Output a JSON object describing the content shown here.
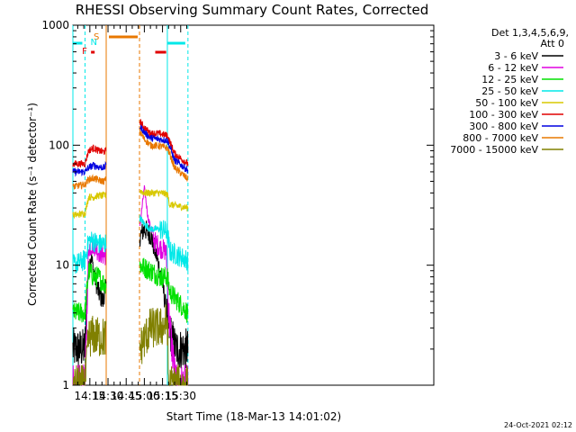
{
  "chart_data": {
    "type": "line",
    "title": "RHESSI Observing Summary Count Rates, Corrected",
    "xlabel": "Start Time (18-Mar-13 14:01:02)",
    "ylabel": "Corrected Count Rate (s⁻¹ detector⁻¹)",
    "yscale": "log",
    "ylim": [
      1,
      1000
    ],
    "xlim_minutes": [
      841,
      1139
    ],
    "yticks": [
      {
        "value": 1,
        "label": "1"
      },
      {
        "value": 10,
        "label": "10"
      },
      {
        "value": 100,
        "label": "100"
      },
      {
        "value": 1000,
        "label": "1000"
      }
    ],
    "xticks": [
      {
        "value": 855,
        "label": "14:15"
      },
      {
        "value": 870,
        "label": "14:30"
      },
      {
        "value": 885,
        "label": "14:45"
      },
      {
        "value": 900,
        "label": "15:00"
      },
      {
        "value": 915,
        "label": "15:15"
      },
      {
        "value": 930,
        "label": "15:30"
      }
    ],
    "legend_header": [
      "Det 1,3,4,5,6,9,",
      "Att 0"
    ],
    "legend_position": "right",
    "timestamp": "24-Oct-2021 02:12",
    "series": [
      {
        "name": "3 - 6 keV",
        "color": "#000000",
        "points": [
          [
            841,
            2
          ],
          [
            851,
            2
          ],
          [
            853,
            8
          ],
          [
            856,
            12
          ],
          [
            858,
            9
          ],
          [
            862,
            6
          ],
          [
            866,
            5
          ],
          [
            867,
            6
          ],
          [
            900,
            20
          ],
          [
            905,
            18
          ],
          [
            910,
            12
          ],
          [
            915,
            7
          ],
          [
            920,
            3
          ],
          [
            926,
            2
          ],
          [
            932,
            2
          ],
          [
            936,
            2
          ]
        ]
      },
      {
        "name": "6 - 12 keV",
        "color": "#e000e0",
        "points": [
          [
            841,
            1
          ],
          [
            851,
            1
          ],
          [
            854,
            14
          ],
          [
            858,
            15
          ],
          [
            862,
            13
          ],
          [
            867,
            12
          ],
          [
            896,
            20
          ],
          [
            900,
            44
          ],
          [
            903,
            25
          ],
          [
            908,
            16
          ],
          [
            913,
            14
          ],
          [
            918,
            13
          ],
          [
            920,
            4
          ],
          [
            926,
            1
          ],
          [
            936,
            1
          ]
        ]
      },
      {
        "name": "12 - 25 keV",
        "color": "#00e000",
        "points": [
          [
            841,
            4
          ],
          [
            851,
            4
          ],
          [
            854,
            9
          ],
          [
            858,
            8
          ],
          [
            862,
            8
          ],
          [
            867,
            7
          ],
          [
            896,
            10
          ],
          [
            905,
            9
          ],
          [
            913,
            8
          ],
          [
            919,
            8
          ],
          [
            921,
            6
          ],
          [
            936,
            4
          ]
        ]
      },
      {
        "name": "25 - 50 keV",
        "color": "#00e8e8",
        "points": [
          [
            841,
            10
          ],
          [
            851,
            11
          ],
          [
            854,
            16
          ],
          [
            858,
            16
          ],
          [
            862,
            15
          ],
          [
            867,
            15
          ],
          [
            896,
            25
          ],
          [
            900,
            22
          ],
          [
            905,
            20
          ],
          [
            913,
            20
          ],
          [
            919,
            19
          ],
          [
            921,
            13
          ],
          [
            936,
            11
          ]
        ]
      },
      {
        "name": "50 - 100 keV",
        "color": "#d8c800",
        "points": [
          [
            841,
            26
          ],
          [
            851,
            27
          ],
          [
            854,
            37
          ],
          [
            858,
            37
          ],
          [
            862,
            38
          ],
          [
            867,
            38
          ],
          [
            896,
            42
          ],
          [
            900,
            40
          ],
          [
            905,
            40
          ],
          [
            913,
            40
          ],
          [
            919,
            39
          ],
          [
            921,
            32
          ],
          [
            936,
            30
          ]
        ]
      },
      {
        "name": "100 - 300 keV",
        "color": "#e00000",
        "points": [
          [
            841,
            70
          ],
          [
            851,
            70
          ],
          [
            854,
            90
          ],
          [
            858,
            95
          ],
          [
            862,
            90
          ],
          [
            867,
            88
          ],
          [
            896,
            160
          ],
          [
            900,
            140
          ],
          [
            905,
            125
          ],
          [
            913,
            125
          ],
          [
            919,
            120
          ],
          [
            925,
            85
          ],
          [
            936,
            70
          ]
        ]
      },
      {
        "name": "300 - 800 keV",
        "color": "#0000e0",
        "points": [
          [
            841,
            60
          ],
          [
            851,
            60
          ],
          [
            854,
            65
          ],
          [
            858,
            68
          ],
          [
            862,
            66
          ],
          [
            867,
            65
          ],
          [
            896,
            145
          ],
          [
            900,
            128
          ],
          [
            905,
            115
          ],
          [
            913,
            112
          ],
          [
            919,
            110
          ],
          [
            925,
            75
          ],
          [
            936,
            62
          ]
        ]
      },
      {
        "name": "800 - 7000 keV",
        "color": "#e87800",
        "points": [
          [
            841,
            45
          ],
          [
            851,
            47
          ],
          [
            854,
            52
          ],
          [
            858,
            53
          ],
          [
            862,
            51
          ],
          [
            867,
            50
          ],
          [
            896,
            130
          ],
          [
            900,
            112
          ],
          [
            905,
            100
          ],
          [
            913,
            98
          ],
          [
            919,
            95
          ],
          [
            925,
            65
          ],
          [
            936,
            52
          ]
        ]
      },
      {
        "name": "7000 - 15000 keV",
        "color": "#808000",
        "points": [
          [
            841,
            1
          ],
          [
            851,
            1
          ],
          [
            854,
            2.5
          ],
          [
            858,
            2.6
          ],
          [
            862,
            2.5
          ],
          [
            867,
            2.5
          ],
          [
            896,
            2
          ],
          [
            905,
            3
          ],
          [
            913,
            3
          ],
          [
            919,
            3.3
          ],
          [
            920,
            1
          ],
          [
            936,
            1
          ]
        ]
      }
    ],
    "annotations": {
      "night_bands": [
        [
          841,
          851
        ],
        [
          919,
          936
        ]
      ],
      "saa_interval": [
        868.5,
        896
      ],
      "flare_label": "F",
      "flare_interval": [
        853,
        856
      ],
      "night_label": "N",
      "saa_label": "S",
      "flare_bar": [
        909,
        918
      ]
    }
  }
}
